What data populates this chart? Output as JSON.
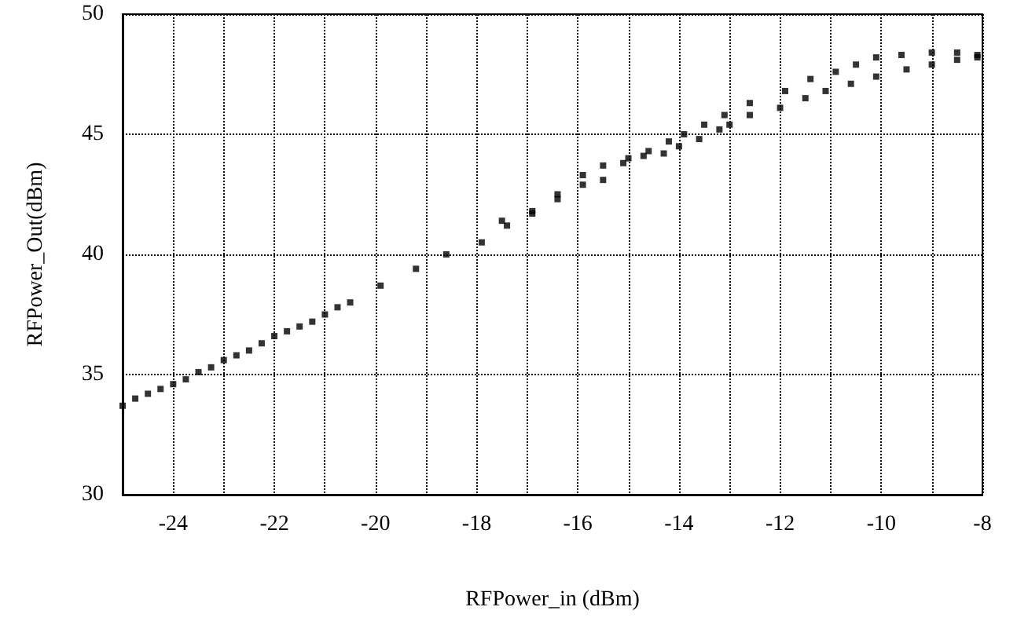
{
  "chart_data": {
    "type": "scatter",
    "xlabel": "RFPower_in (dBm)",
    "ylabel": "RFPower_Out(dBm)",
    "x": [
      -25,
      -24.75,
      -24.5,
      -24.25,
      -24,
      -23.75,
      -23.5,
      -23.25,
      -23,
      -22.75,
      -22.5,
      -22.25,
      -22,
      -21.75,
      -21.5,
      -21.25,
      -21,
      -20.75,
      -20.5,
      -19.9,
      -19.2,
      -18.6,
      -17.9,
      -17.5,
      -16.9,
      -16.4,
      -15.9,
      -15.5,
      -15.0,
      -14.6,
      -14.2,
      -13.9,
      -13.5,
      -13.1,
      -12.6,
      -11.9,
      -11.4,
      -10.9,
      -10.5,
      -10.1,
      -9.6,
      -9.0,
      -8.5,
      -8.1,
      -8.1,
      -8.5,
      -9.0,
      -9.5,
      -10.1,
      -10.6,
      -11.1,
      -11.5,
      -12.0,
      -12.6,
      -13.0,
      -13.2,
      -13.6,
      -14.0,
      -14.3,
      -14.7,
      -15.1,
      -15.5,
      -15.9,
      -16.4,
      -16.9,
      -17.4
    ],
    "series": [
      {
        "color": "#000000",
        "values": [
          33.7,
          34.0,
          34.2,
          34.4,
          34.6,
          34.8,
          35.1,
          35.3,
          35.6,
          35.8,
          36.0,
          36.3,
          36.6,
          36.8,
          37.0,
          37.2,
          37.5,
          37.8,
          38.0,
          38.7,
          39.4,
          40.0,
          40.5,
          41.4,
          41.8,
          42.5,
          43.3,
          43.7,
          44.0,
          44.3,
          44.7,
          45.0,
          45.4,
          45.8,
          46.3,
          46.8,
          47.3,
          47.6,
          47.9,
          48.2,
          48.3,
          48.4,
          48.4,
          48.3,
          48.2,
          48.1,
          47.9,
          47.7,
          47.4,
          47.1,
          46.8,
          46.5,
          46.1,
          45.8,
          45.4,
          45.2,
          44.8,
          44.5,
          44.2,
          44.1,
          43.8,
          43.1,
          42.9,
          42.3,
          41.7,
          41.2
        ]
      }
    ],
    "xlim": [
      -25,
      -8
    ],
    "ylim": [
      30,
      50
    ],
    "xticks": [
      -24,
      {
        "value": -23,
        "label": null
      },
      -22,
      {
        "value": -21,
        "label": null
      },
      -20,
      {
        "value": -19,
        "label": null
      },
      -18,
      {
        "value": -17,
        "label": null
      },
      -16,
      {
        "value": -15,
        "label": null
      },
      -14,
      {
        "value": -13,
        "label": null
      },
      -12,
      {
        "value": -11,
        "label": null
      },
      -10,
      {
        "value": -9,
        "label": null
      },
      -8
    ],
    "yticks": [
      30,
      35,
      40,
      45,
      50
    ],
    "grid": true,
    "marker": "square"
  }
}
